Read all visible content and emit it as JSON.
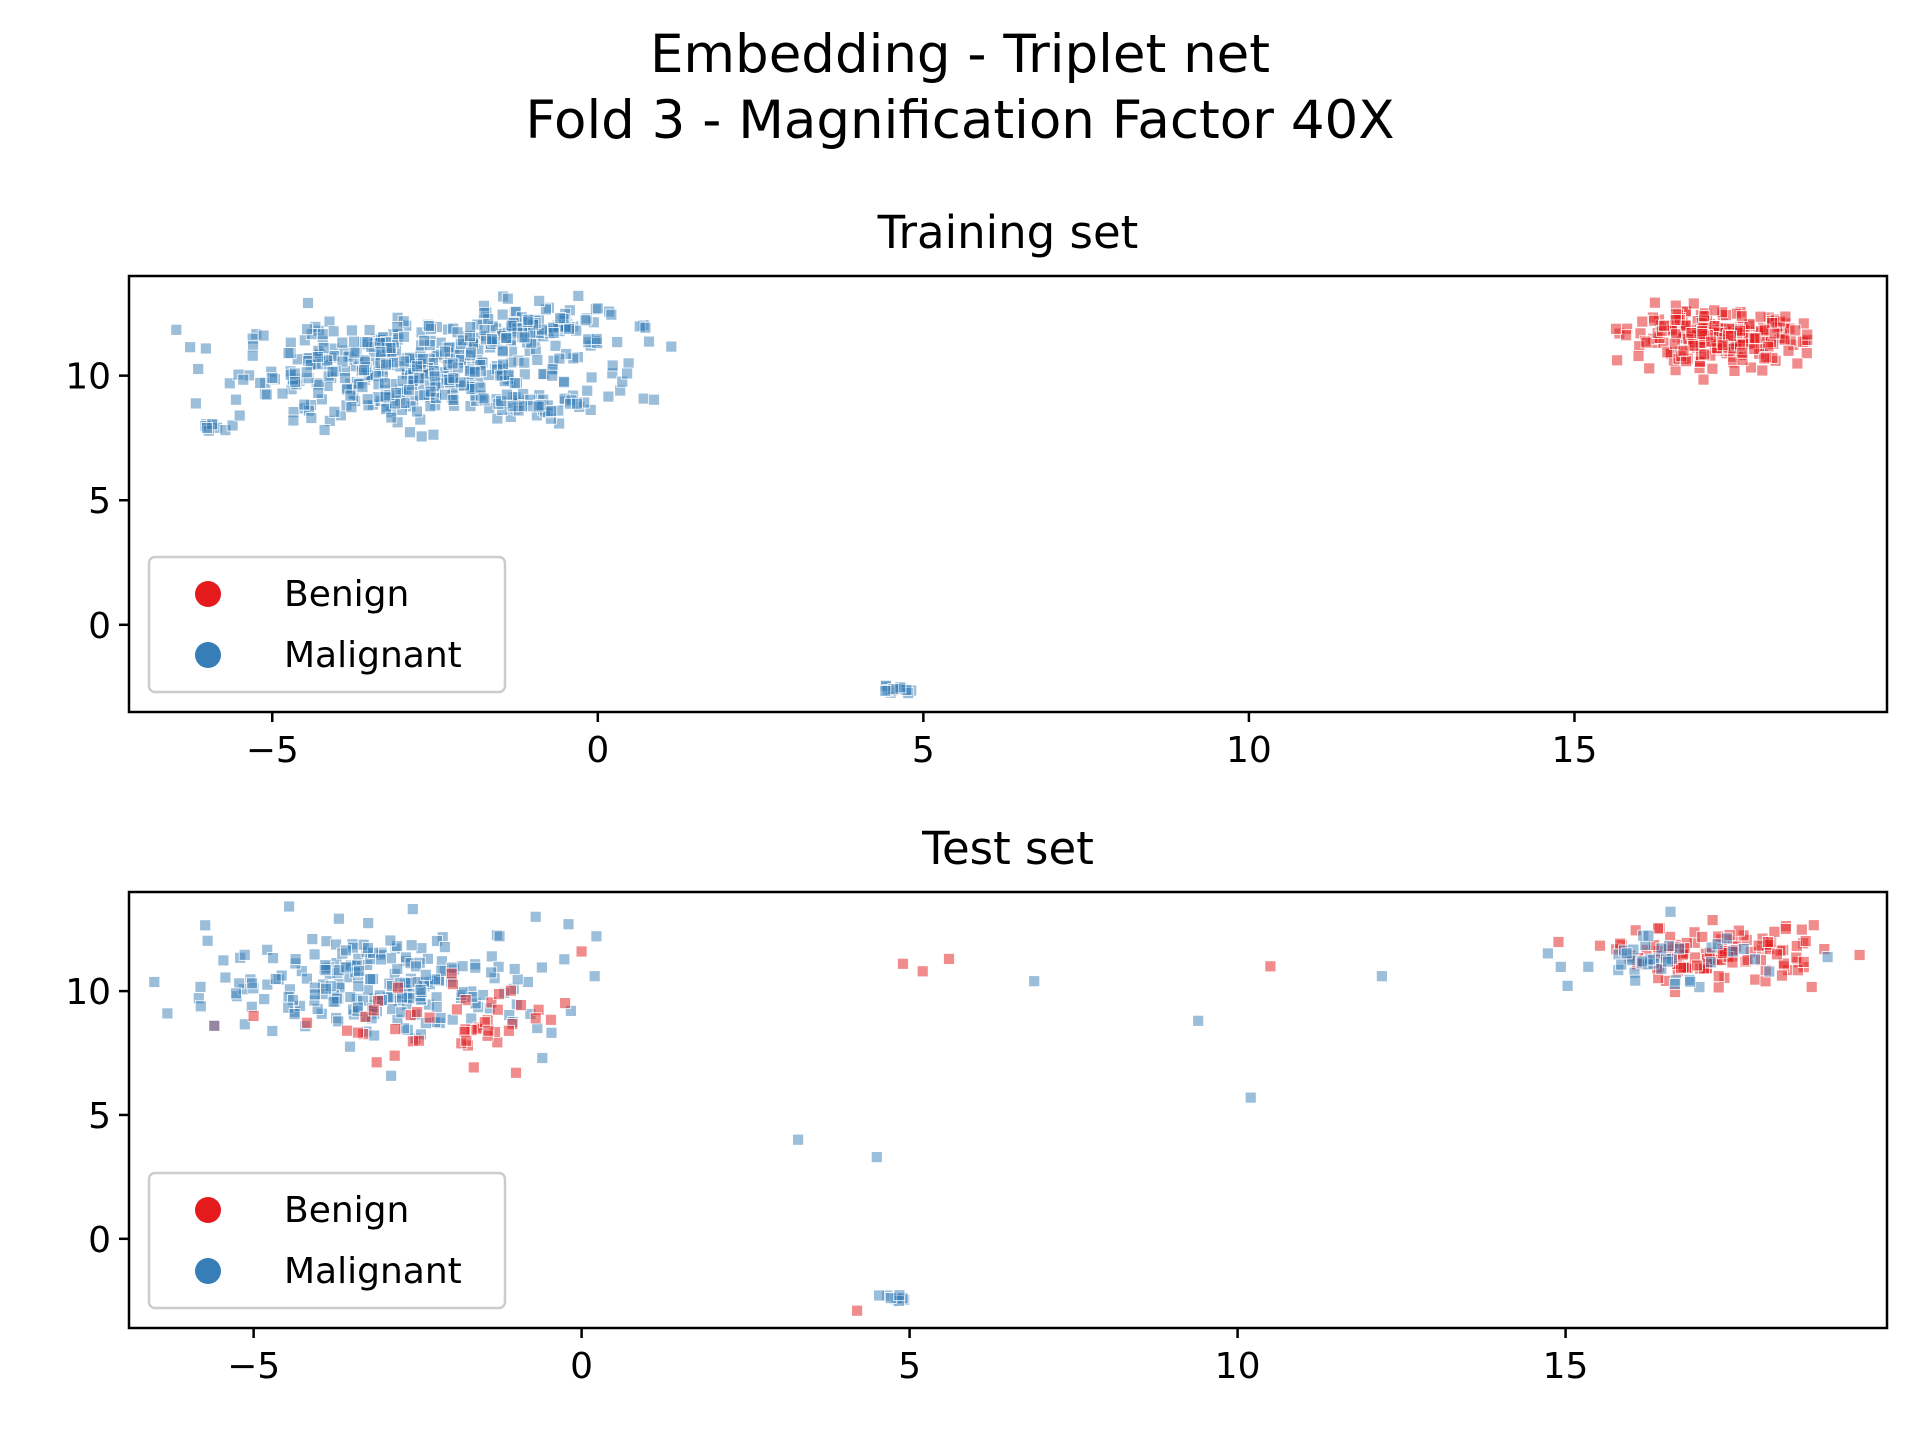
{
  "chart_data": {
    "type": "scatter",
    "title": "Embedding - Triplet net\nFold 3 - Magnification Factor 40X",
    "title_lines": [
      "Embedding - Triplet net",
      "Fold 3 - Magnification Factor 40X"
    ],
    "colors": {
      "Benign": "#e41a1c",
      "Malignant": "#377eb8"
    },
    "marker": "square",
    "legend": {
      "location": "lower-left",
      "entries": [
        "Benign",
        "Malignant"
      ]
    },
    "grid": false,
    "panels": [
      {
        "title": "Training set",
        "xlabel": "",
        "ylabel": "",
        "xlim": [
          -7.2,
          19.8
        ],
        "ylim": [
          -3.5,
          14.0
        ],
        "xticks": [
          -5,
          0,
          5,
          10,
          15
        ],
        "yticks": [
          0,
          5,
          10
        ],
        "clusters": [
          {
            "series": "Malignant",
            "center": [
              -2.8,
              10.2
            ],
            "spread": [
              1.35,
              1.0
            ],
            "count": 420
          },
          {
            "series": "Malignant",
            "center": [
              -1.1,
              11.9
            ],
            "spread": [
              0.7,
              0.4
            ],
            "count": 90
          },
          {
            "series": "Malignant",
            "center": [
              -0.8,
              8.8
            ],
            "spread": [
              0.35,
              0.2
            ],
            "count": 25
          },
          {
            "series": "Malignant",
            "center": [
              -5.8,
              8.0
            ],
            "spread": [
              0.15,
              0.07
            ],
            "count": 8
          },
          {
            "series": "Malignant",
            "center": [
              4.6,
              -2.6
            ],
            "spread": [
              0.12,
              0.08
            ],
            "count": 15
          },
          {
            "series": "Benign",
            "center": [
              17.2,
              11.5
            ],
            "spread": [
              0.65,
              0.5
            ],
            "count": 260
          }
        ],
        "points": [
          {
            "x": -6.0,
            "y": 7.9,
            "series": "Malignant"
          },
          {
            "x": -5.5,
            "y": 8.4,
            "series": "Malignant"
          },
          {
            "x": -4.4,
            "y": 8.3,
            "series": "Malignant"
          },
          {
            "x": -5.3,
            "y": 10.8,
            "series": "Malignant"
          },
          {
            "x": -0.9,
            "y": 13.0,
            "series": "Malignant"
          },
          {
            "x": -0.3,
            "y": 13.2,
            "series": "Malignant"
          },
          {
            "x": 0.0,
            "y": 12.7,
            "series": "Malignant"
          },
          {
            "x": -0.7,
            "y": 10.0,
            "series": "Malignant"
          }
        ]
      },
      {
        "title": "Test set",
        "xlabel": "",
        "ylabel": "",
        "xlim": [
          -6.9,
          19.9
        ],
        "ylim": [
          -3.6,
          14.0
        ],
        "xticks": [
          -5,
          0,
          5,
          10,
          15
        ],
        "yticks": [
          0,
          5,
          10
        ],
        "clusters": [
          {
            "series": "Malignant",
            "center": [
              -3.0,
              10.3
            ],
            "spread": [
              1.3,
              1.1
            ],
            "count": 230
          },
          {
            "series": "Benign",
            "center": [
              -1.8,
              8.6
            ],
            "spread": [
              1.0,
              0.8
            ],
            "count": 45
          },
          {
            "series": "Benign",
            "center": [
              17.3,
              11.5
            ],
            "spread": [
              0.8,
              0.55
            ],
            "count": 120
          },
          {
            "series": "Malignant",
            "center": [
              16.5,
              11.2
            ],
            "spread": [
              0.7,
              0.5
            ],
            "count": 45
          },
          {
            "series": "Malignant",
            "center": [
              4.7,
              -2.4
            ],
            "spread": [
              0.12,
              0.08
            ],
            "count": 10
          }
        ],
        "points": [
          {
            "x": -5.6,
            "y": 8.6,
            "series": "Benign"
          },
          {
            "x": -5.6,
            "y": 8.6,
            "series": "Malignant"
          },
          {
            "x": -5.0,
            "y": 9.0,
            "series": "Benign"
          },
          {
            "x": -0.7,
            "y": 8.9,
            "series": "Benign"
          },
          {
            "x": -1.0,
            "y": 6.7,
            "series": "Benign"
          },
          {
            "x": -0.6,
            "y": 7.3,
            "series": "Malignant"
          },
          {
            "x": -0.7,
            "y": 13.0,
            "series": "Malignant"
          },
          {
            "x": 0.2,
            "y": 10.6,
            "series": "Malignant"
          },
          {
            "x": 0.0,
            "y": 11.6,
            "series": "Benign"
          },
          {
            "x": -0.2,
            "y": 12.7,
            "series": "Malignant"
          },
          {
            "x": 4.9,
            "y": 11.1,
            "series": "Benign"
          },
          {
            "x": 5.2,
            "y": 10.8,
            "series": "Benign"
          },
          {
            "x": 5.6,
            "y": 11.3,
            "series": "Benign"
          },
          {
            "x": 6.9,
            "y": 10.4,
            "series": "Malignant"
          },
          {
            "x": 10.5,
            "y": 11.0,
            "series": "Benign"
          },
          {
            "x": 12.2,
            "y": 10.6,
            "series": "Malignant"
          },
          {
            "x": 9.4,
            "y": 8.8,
            "series": "Malignant"
          },
          {
            "x": 10.2,
            "y": 5.7,
            "series": "Malignant"
          },
          {
            "x": 3.3,
            "y": 4.0,
            "series": "Malignant"
          },
          {
            "x": 4.5,
            "y": 3.3,
            "series": "Malignant"
          },
          {
            "x": 4.2,
            "y": -2.9,
            "series": "Benign"
          },
          {
            "x": 16.6,
            "y": 13.2,
            "series": "Malignant"
          }
        ]
      }
    ]
  }
}
